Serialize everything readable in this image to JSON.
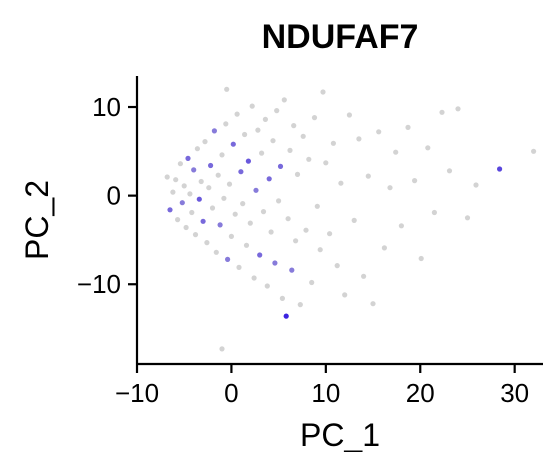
{
  "chart_data": {
    "type": "scatter",
    "title": "NDUFAF7",
    "xlabel": "PC_1",
    "ylabel": "PC_2",
    "xlim": [
      -10,
      33
    ],
    "ylim": [
      -19,
      13.5
    ],
    "xticks": [
      -10,
      0,
      10,
      20,
      30
    ],
    "xtick_labels": [
      "−10",
      "0",
      "10",
      "20",
      "30"
    ],
    "yticks": [
      10,
      0,
      -10
    ],
    "ytick_labels": [
      "10",
      "0",
      "−10"
    ],
    "grid": false,
    "legend": "none",
    "colors": {
      "low": "#d3d3d3",
      "high": "#3b23e0"
    },
    "points": [
      [
        -6.8,
        2.1,
        0.0
      ],
      [
        -6.5,
        -1.6,
        0.6
      ],
      [
        -6.2,
        0.4,
        0.0
      ],
      [
        -5.9,
        1.8,
        0.0
      ],
      [
        -5.7,
        -2.7,
        0.0
      ],
      [
        -5.4,
        3.6,
        0.0
      ],
      [
        -5.2,
        -0.8,
        0.5
      ],
      [
        -5.0,
        1.1,
        0.0
      ],
      [
        -4.8,
        -3.6,
        0.0
      ],
      [
        -4.6,
        4.2,
        0.6
      ],
      [
        -4.4,
        0.2,
        0.0
      ],
      [
        -4.2,
        -1.9,
        0.0
      ],
      [
        -4.0,
        2.9,
        0.5
      ],
      [
        -3.8,
        -4.4,
        0.0
      ],
      [
        -3.6,
        5.3,
        0.0
      ],
      [
        -3.4,
        -0.4,
        0.7
      ],
      [
        -3.2,
        1.6,
        0.0
      ],
      [
        -3.0,
        -2.9,
        0.6
      ],
      [
        -2.8,
        6.1,
        0.0
      ],
      [
        -2.6,
        -5.3,
        0.0
      ],
      [
        -2.4,
        0.9,
        0.0
      ],
      [
        -2.2,
        3.4,
        0.6
      ],
      [
        -2.0,
        -1.4,
        0.0
      ],
      [
        -1.8,
        7.3,
        0.5
      ],
      [
        -1.6,
        -6.4,
        0.0
      ],
      [
        -1.4,
        2.3,
        0.0
      ],
      [
        -1.2,
        -3.3,
        0.5
      ],
      [
        -1.0,
        4.6,
        0.0
      ],
      [
        -0.8,
        -0.3,
        0.0
      ],
      [
        -0.6,
        8.1,
        0.0
      ],
      [
        -0.4,
        -7.2,
        0.5
      ],
      [
        -0.2,
        1.3,
        0.0
      ],
      [
        0.0,
        -4.6,
        0.0
      ],
      [
        0.2,
        5.8,
        0.6
      ],
      [
        0.4,
        -2.1,
        0.0
      ],
      [
        0.6,
        9.2,
        0.0
      ],
      [
        0.8,
        -8.1,
        0.0
      ],
      [
        1.0,
        2.7,
        0.6
      ],
      [
        1.2,
        -0.9,
        0.0
      ],
      [
        1.4,
        6.9,
        0.0
      ],
      [
        1.6,
        -5.6,
        0.0
      ],
      [
        1.8,
        3.9,
        0.7
      ],
      [
        2.0,
        -3.1,
        0.0
      ],
      [
        2.2,
        10.1,
        0.0
      ],
      [
        2.4,
        -9.3,
        0.0
      ],
      [
        2.6,
        0.6,
        0.5
      ],
      [
        2.8,
        7.4,
        0.0
      ],
      [
        3.0,
        -6.7,
        0.6
      ],
      [
        3.2,
        4.8,
        0.0
      ],
      [
        3.4,
        -1.8,
        0.0
      ],
      [
        3.6,
        8.6,
        0.0
      ],
      [
        3.8,
        -10.2,
        0.0
      ],
      [
        4.0,
        1.9,
        0.6
      ],
      [
        4.2,
        -4.1,
        0.0
      ],
      [
        4.4,
        6.2,
        0.0
      ],
      [
        4.6,
        -7.6,
        0.5
      ],
      [
        4.8,
        9.6,
        0.0
      ],
      [
        5.0,
        -0.6,
        0.0
      ],
      [
        5.2,
        3.3,
        0.6
      ],
      [
        5.4,
        -11.6,
        0.0
      ],
      [
        5.6,
        10.8,
        0.0
      ],
      [
        5.8,
        -13.6,
        1.0
      ],
      [
        6.0,
        -2.6,
        0.0
      ],
      [
        6.2,
        5.1,
        0.0
      ],
      [
        6.4,
        -8.4,
        0.5
      ],
      [
        6.6,
        7.9,
        0.0
      ],
      [
        6.8,
        -5.1,
        0.0
      ],
      [
        7.0,
        2.4,
        0.0
      ],
      [
        7.3,
        -12.3,
        0.0
      ],
      [
        7.6,
        6.7,
        0.0
      ],
      [
        7.9,
        -3.9,
        0.0
      ],
      [
        8.2,
        4.1,
        0.0
      ],
      [
        8.5,
        -9.8,
        0.0
      ],
      [
        8.8,
        8.8,
        0.0
      ],
      [
        9.1,
        -1.2,
        0.0
      ],
      [
        9.4,
        -6.1,
        0.0
      ],
      [
        9.7,
        11.7,
        0.0
      ],
      [
        10.0,
        3.7,
        0.0
      ],
      [
        10.4,
        -4.3,
        0.0
      ],
      [
        10.8,
        5.9,
        0.0
      ],
      [
        11.2,
        -7.9,
        0.0
      ],
      [
        11.6,
        1.4,
        0.0
      ],
      [
        12.0,
        -11.2,
        0.0
      ],
      [
        12.5,
        9.1,
        0.0
      ],
      [
        13.0,
        -2.8,
        0.0
      ],
      [
        13.5,
        6.4,
        0.0
      ],
      [
        14.0,
        -9.1,
        0.0
      ],
      [
        14.5,
        2.2,
        0.0
      ],
      [
        15.0,
        -12.2,
        0.0
      ],
      [
        15.6,
        7.2,
        0.0
      ],
      [
        16.2,
        -5.9,
        0.0
      ],
      [
        16.8,
        0.9,
        0.0
      ],
      [
        17.4,
        4.9,
        0.0
      ],
      [
        18.0,
        -3.4,
        0.0
      ],
      [
        18.7,
        7.7,
        0.0
      ],
      [
        19.4,
        1.7,
        0.0
      ],
      [
        20.1,
        -7.1,
        0.0
      ],
      [
        20.8,
        5.4,
        0.0
      ],
      [
        21.5,
        -1.9,
        0.0
      ],
      [
        22.3,
        9.4,
        0.0
      ],
      [
        23.1,
        2.8,
        0.0
      ],
      [
        24.0,
        9.8,
        0.0
      ],
      [
        25.0,
        -2.5,
        0.0
      ],
      [
        25.9,
        1.2,
        0.0
      ],
      [
        28.4,
        3.0,
        0.8
      ],
      [
        32.0,
        5.0,
        0.0
      ],
      [
        -1.0,
        -17.3,
        0.0
      ],
      [
        -0.5,
        12.0,
        0.0
      ]
    ]
  }
}
